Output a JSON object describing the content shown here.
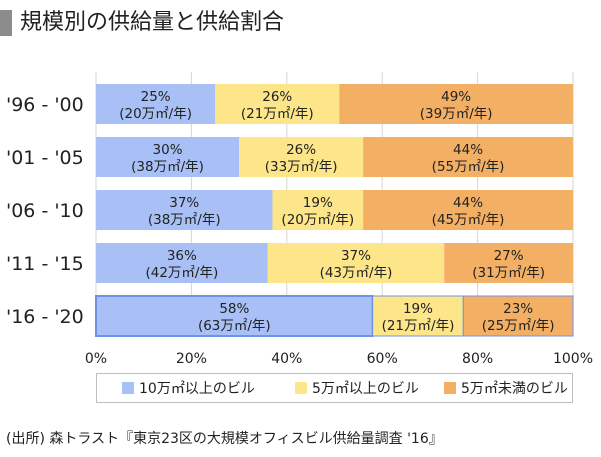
{
  "title": "規模別の供給量と供給割合",
  "source": "(出所) 森トラスト『東京23区の大規模オフィスビル供給量調査 '16』",
  "chart_data": {
    "type": "bar",
    "orientation": "horizontal",
    "stacked": true,
    "normalized": true,
    "categories": [
      "'96 - '00",
      "'01 - '05",
      "'06 - '10",
      "'11 - '15",
      "'16 - '20"
    ],
    "xlim": [
      0,
      100
    ],
    "x_ticks": [
      "0%",
      "20%",
      "40%",
      "60%",
      "80%",
      "100%"
    ],
    "grid": "vertical",
    "legend_position": "bottom",
    "series": [
      {
        "name": "10万㎡以上のビル",
        "color": "#a8c0f5",
        "values": [
          25,
          30,
          37,
          36,
          58
        ],
        "labels": [
          "25%",
          "30%",
          "37%",
          "36%",
          "58%"
        ],
        "sublabels": [
          "(20万㎡/年)",
          "(38万㎡/年)",
          "(38万㎡/年)",
          "(42万㎡/年)",
          "(63万㎡/年)"
        ]
      },
      {
        "name": "5万㎡以上のビル",
        "color": "#fde58a",
        "values": [
          26,
          26,
          19,
          37,
          19
        ],
        "labels": [
          "26%",
          "26%",
          "19%",
          "37%",
          "19%"
        ],
        "sublabels": [
          "(21万㎡/年)",
          "(33万㎡/年)",
          "(20万㎡/年)",
          "(43万㎡/年)",
          "(21万㎡/年)"
        ]
      },
      {
        "name": "5万㎡未満のビル",
        "color": "#f3b065",
        "values": [
          49,
          44,
          44,
          27,
          23
        ],
        "labels": [
          "49%",
          "44%",
          "44%",
          "27%",
          "23%"
        ],
        "sublabels": [
          "(39万㎡/年)",
          "(55万㎡/年)",
          "(45万㎡/年)",
          "(31万㎡/年)",
          "(25万㎡/年)"
        ]
      }
    ],
    "highlight_category": "'16 - '20"
  }
}
